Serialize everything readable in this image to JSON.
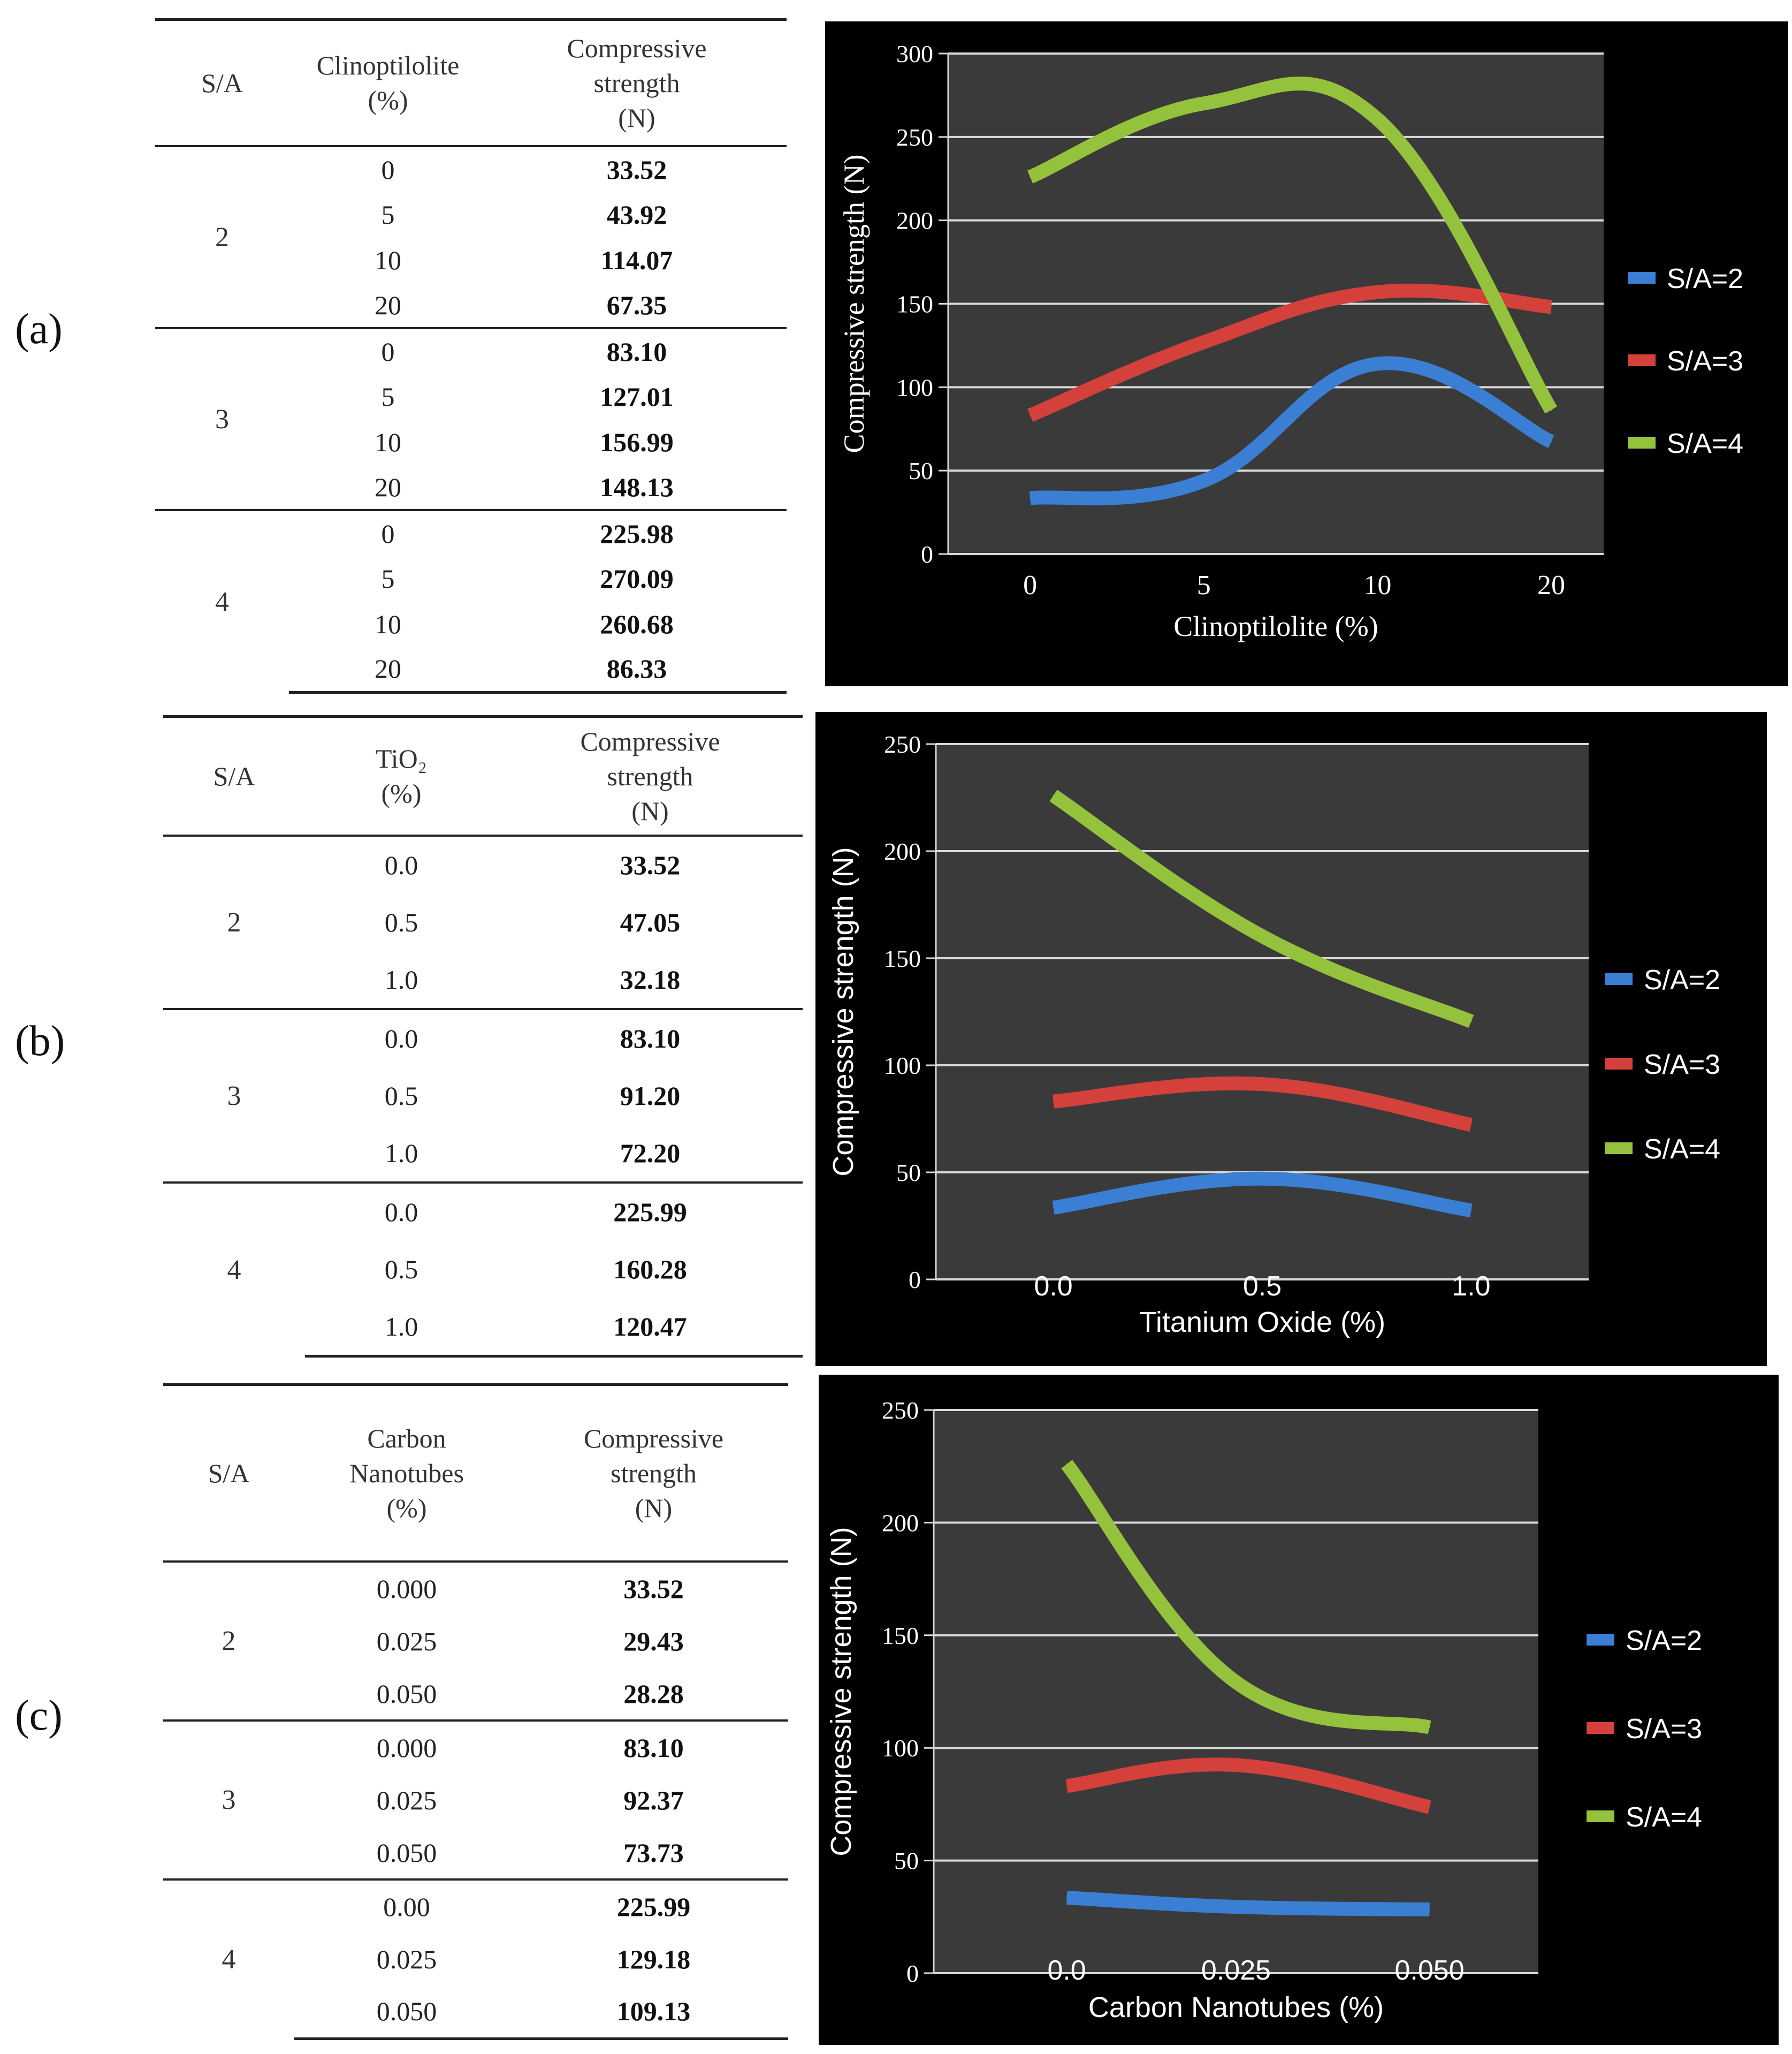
{
  "panels": [
    {
      "label": "(a)",
      "table": {
        "headers": [
          "S/A",
          "Clinoptilolite\n(%)",
          "Compressive\nstrength\n(N)"
        ],
        "groups": [
          {
            "sa": "2",
            "rows": [
              [
                "0",
                "33.52"
              ],
              [
                "5",
                "43.92"
              ],
              [
                "10",
                "114.07"
              ],
              [
                "20",
                "67.35"
              ]
            ]
          },
          {
            "sa": "3",
            "rows": [
              [
                "0",
                "83.10"
              ],
              [
                "5",
                "127.01"
              ],
              [
                "10",
                "156.99"
              ],
              [
                "20",
                "148.13"
              ]
            ]
          },
          {
            "sa": "4",
            "rows": [
              [
                "0",
                "225.98"
              ],
              [
                "5",
                "270.09"
              ],
              [
                "10",
                "260.68"
              ],
              [
                "20",
                "86.33"
              ]
            ]
          }
        ]
      }
    },
    {
      "label": "(b)",
      "table": {
        "headers": [
          "S/A",
          "TiO₂\n(%)",
          "Compressive\nstrength\n(N)"
        ],
        "groups": [
          {
            "sa": "2",
            "rows": [
              [
                "0.0",
                "33.52"
              ],
              [
                "0.5",
                "47.05"
              ],
              [
                "1.0",
                "32.18"
              ]
            ]
          },
          {
            "sa": "3",
            "rows": [
              [
                "0.0",
                "83.10"
              ],
              [
                "0.5",
                "91.20"
              ],
              [
                "1.0",
                "72.20"
              ]
            ]
          },
          {
            "sa": "4",
            "rows": [
              [
                "0.0",
                "225.99"
              ],
              [
                "0.5",
                "160.28"
              ],
              [
                "1.0",
                "120.47"
              ]
            ]
          }
        ]
      }
    },
    {
      "label": "(c)",
      "table": {
        "headers": [
          "S/A",
          "Carbon\nNanotubes\n(%)",
          "Compressive\nstrength\n(N)"
        ],
        "groups": [
          {
            "sa": "2",
            "rows": [
              [
                "0.000",
                "33.52"
              ],
              [
                "0.025",
                "29.43"
              ],
              [
                "0.050",
                "28.28"
              ]
            ]
          },
          {
            "sa": "3",
            "rows": [
              [
                "0.000",
                "83.10"
              ],
              [
                "0.025",
                "92.37"
              ],
              [
                "0.050",
                "73.73"
              ]
            ]
          },
          {
            "sa": "4",
            "rows": [
              [
                "0.00",
                "225.99"
              ],
              [
                "0.025",
                "129.18"
              ],
              [
                "0.050",
                "109.13"
              ]
            ]
          }
        ]
      }
    }
  ],
  "chart_data": [
    {
      "type": "line",
      "categories": [
        "0",
        "5",
        "10",
        "20"
      ],
      "xlabel": "Clinoptilolite (%)",
      "ylabel": "Compressive strength (N)",
      "ylim": [
        0,
        300
      ],
      "yticks": [
        0,
        50,
        100,
        150,
        200,
        250,
        300
      ],
      "grid": true,
      "legend_position": "right",
      "series": [
        {
          "name": "S/A=2",
          "color": "#3a7fd4",
          "values": [
            33.52,
            43.92,
            114.07,
            67.35
          ]
        },
        {
          "name": "S/A=3",
          "color": "#d4403a",
          "values": [
            83.1,
            127.01,
            156.99,
            148.13
          ]
        },
        {
          "name": "S/A=4",
          "color": "#94c23c",
          "values": [
            225.98,
            270.09,
            260.68,
            86.33
          ]
        }
      ]
    },
    {
      "type": "line",
      "categories": [
        "0.0",
        "0.5",
        "1.0"
      ],
      "xlabel": "Titanium  Oxide (%)",
      "ylabel": "Compressive strength (N)",
      "ylim": [
        0,
        250
      ],
      "yticks": [
        0,
        50,
        100,
        150,
        200,
        250
      ],
      "grid": true,
      "legend_position": "right",
      "series": [
        {
          "name": "S/A=2",
          "color": "#3a7fd4",
          "values": [
            33.52,
            47.05,
            32.18
          ]
        },
        {
          "name": "S/A=3",
          "color": "#d4403a",
          "values": [
            83.1,
            91.2,
            72.2
          ]
        },
        {
          "name": "S/A=4",
          "color": "#94c23c",
          "values": [
            225.99,
            160.28,
            120.47
          ]
        }
      ]
    },
    {
      "type": "line",
      "categories": [
        "0.0",
        "0.025",
        "0.050"
      ],
      "xlabel": "Carbon Nanotubes (%)",
      "ylabel": "Compressive strength (N)",
      "ylim": [
        0,
        250
      ],
      "yticks": [
        0,
        50,
        100,
        150,
        200,
        250
      ],
      "grid": true,
      "legend_position": "right",
      "series": [
        {
          "name": "S/A=2",
          "color": "#3a7fd4",
          "values": [
            33.52,
            29.43,
            28.28
          ]
        },
        {
          "name": "S/A=3",
          "color": "#d4403a",
          "values": [
            83.1,
            92.37,
            73.73
          ]
        },
        {
          "name": "S/A=4",
          "color": "#94c23c",
          "values": [
            225.99,
            129.18,
            109.13
          ]
        }
      ]
    }
  ]
}
